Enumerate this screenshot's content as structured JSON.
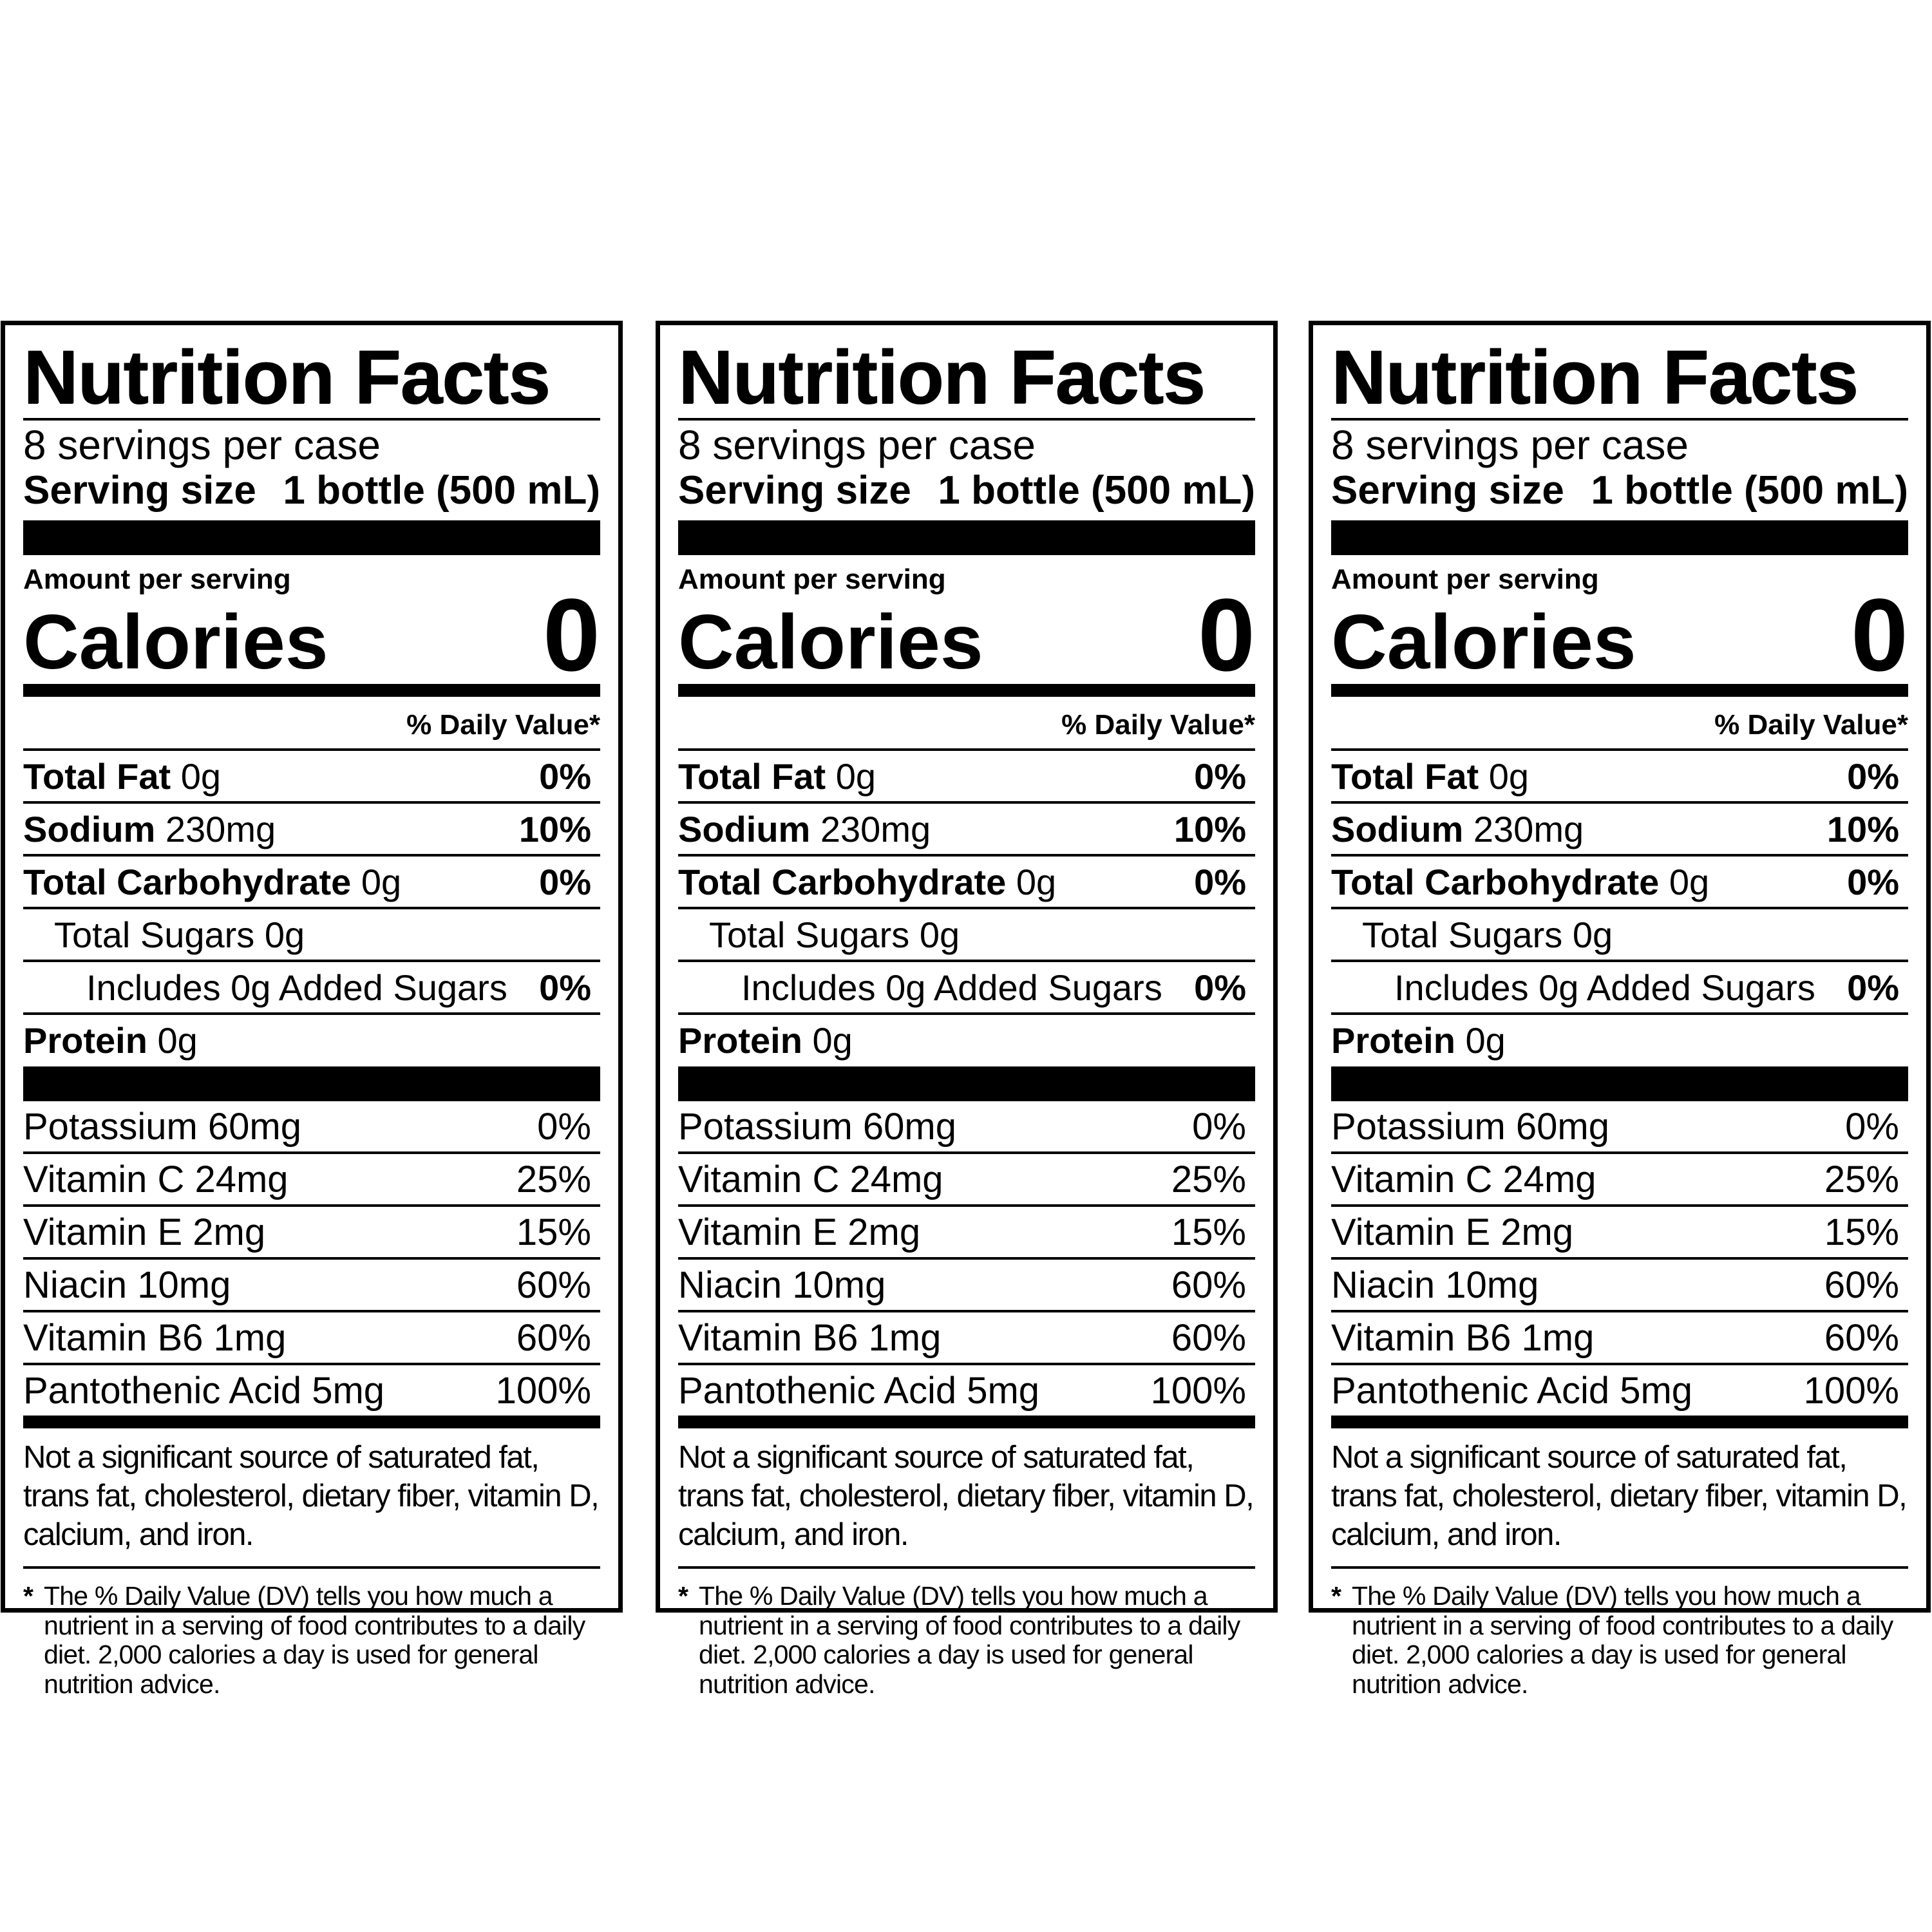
{
  "panels": [
    {
      "title": "Nutrition Facts",
      "servings_per_container": "8 servings per case",
      "serving_size_label": "Serving size",
      "serving_size_value": "1 bottle (500 mL)",
      "amount_per_serving": "Amount per serving",
      "calories_label": "Calories",
      "calories_value": "0",
      "dv_header": "% Daily Value*",
      "nutrients": [
        {
          "name": "Total Fat",
          "amount": "0g",
          "dv": "0%"
        },
        {
          "name": "Sodium",
          "amount": "230mg",
          "dv": "10%"
        },
        {
          "name": "Total Carbohydrate",
          "amount": "0g",
          "dv": "0%"
        },
        {
          "name": "Total Sugars 0g",
          "amount": "",
          "dv": ""
        },
        {
          "name": "Includes 0g Added Sugars",
          "amount": "",
          "dv": "0%"
        },
        {
          "name": "Protein",
          "amount": "0g",
          "dv": ""
        }
      ],
      "vitamins": [
        {
          "name": "Potassium 60mg",
          "dv": "0%"
        },
        {
          "name": "Vitamin C 24mg",
          "dv": "25%"
        },
        {
          "name": "Vitamin E 2mg",
          "dv": "15%"
        },
        {
          "name": "Niacin 10mg",
          "dv": "60%"
        },
        {
          "name": "Vitamin B6 1mg",
          "dv": "60%"
        },
        {
          "name": "Pantothenic Acid 5mg",
          "dv": "100%"
        }
      ],
      "not_significant": "Not a significant source of saturated fat, trans fat, cholesterol, dietary fiber, vitamin D, calcium, and iron.",
      "footnote_star": "*",
      "footnote": "The % Daily Value (DV) tells you how much a nutrient in a serving of food contributes to a daily diet. 2,000 calories a day is used for general nutrition advice."
    },
    {
      "title": "Nutrition Facts",
      "servings_per_container": "8 servings per case",
      "serving_size_label": "Serving size",
      "serving_size_value": "1 bottle (500 mL)",
      "amount_per_serving": "Amount per serving",
      "calories_label": "Calories",
      "calories_value": "0",
      "dv_header": "% Daily Value*",
      "nutrients": [
        {
          "name": "Total Fat",
          "amount": "0g",
          "dv": "0%"
        },
        {
          "name": "Sodium",
          "amount": "230mg",
          "dv": "10%"
        },
        {
          "name": "Total Carbohydrate",
          "amount": "0g",
          "dv": "0%"
        },
        {
          "name": "Total Sugars 0g",
          "amount": "",
          "dv": ""
        },
        {
          "name": "Includes 0g Added Sugars",
          "amount": "",
          "dv": "0%"
        },
        {
          "name": "Protein",
          "amount": "0g",
          "dv": ""
        }
      ],
      "vitamins": [
        {
          "name": "Potassium 60mg",
          "dv": "0%"
        },
        {
          "name": "Vitamin C 24mg",
          "dv": "25%"
        },
        {
          "name": "Vitamin E 2mg",
          "dv": "15%"
        },
        {
          "name": "Niacin 10mg",
          "dv": "60%"
        },
        {
          "name": "Vitamin B6 1mg",
          "dv": "60%"
        },
        {
          "name": "Pantothenic Acid 5mg",
          "dv": "100%"
        }
      ],
      "not_significant": "Not a significant source of saturated fat, trans fat, cholesterol, dietary fiber, vitamin D, calcium, and iron.",
      "footnote_star": "*",
      "footnote": "The % Daily Value (DV) tells you how much a nutrient in a serving of food contributes to a daily diet. 2,000 calories a day is used for general nutrition advice."
    },
    {
      "title": "Nutrition Facts",
      "servings_per_container": "8 servings per case",
      "serving_size_label": "Serving size",
      "serving_size_value": "1 bottle (500 mL)",
      "amount_per_serving": "Amount per serving",
      "calories_label": "Calories",
      "calories_value": "0",
      "dv_header": "% Daily Value*",
      "nutrients": [
        {
          "name": "Total Fat",
          "amount": "0g",
          "dv": "0%"
        },
        {
          "name": "Sodium",
          "amount": "230mg",
          "dv": "10%"
        },
        {
          "name": "Total Carbohydrate",
          "amount": "0g",
          "dv": "0%"
        },
        {
          "name": "Total Sugars 0g",
          "amount": "",
          "dv": ""
        },
        {
          "name": "Includes 0g Added Sugars",
          "amount": "",
          "dv": "0%"
        },
        {
          "name": "Protein",
          "amount": "0g",
          "dv": ""
        }
      ],
      "vitamins": [
        {
          "name": "Potassium 60mg",
          "dv": "0%"
        },
        {
          "name": "Vitamin C 24mg",
          "dv": "25%"
        },
        {
          "name": "Vitamin E 2mg",
          "dv": "15%"
        },
        {
          "name": "Niacin 10mg",
          "dv": "60%"
        },
        {
          "name": "Vitamin B6 1mg",
          "dv": "60%"
        },
        {
          "name": "Pantothenic Acid 5mg",
          "dv": "100%"
        }
      ],
      "not_significant": "Not a significant source of saturated fat, trans fat, cholesterol, dietary fiber, vitamin D, calcium, and iron.",
      "footnote_star": "*",
      "footnote": "The % Daily Value (DV) tells you how much a nutrient in a serving of food contributes to a daily diet. 2,000 calories a day is used for general nutrition advice."
    }
  ]
}
